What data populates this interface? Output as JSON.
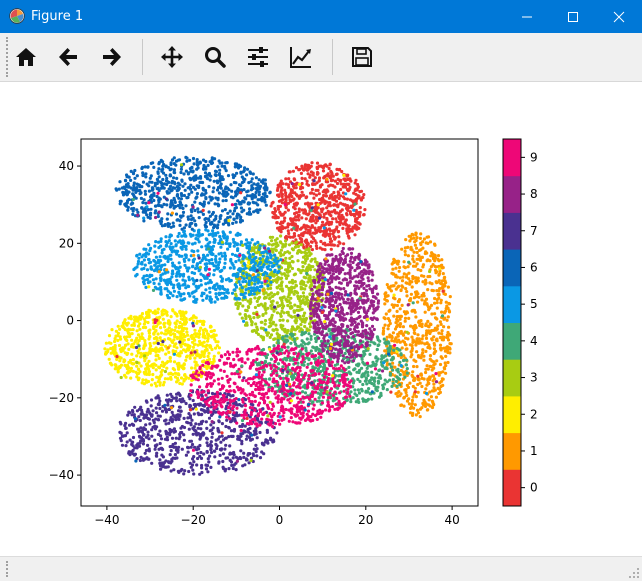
{
  "window": {
    "title": "Figure 1"
  },
  "toolbar": {
    "buttons": [
      {
        "name": "home",
        "icon": "home-icon"
      },
      {
        "name": "back",
        "icon": "arrow-left-icon"
      },
      {
        "name": "forward",
        "icon": "arrow-right-icon"
      },
      {
        "name": "pan",
        "icon": "move-icon"
      },
      {
        "name": "zoom",
        "icon": "magnifier-icon"
      },
      {
        "name": "configure-subplots",
        "icon": "sliders-icon"
      },
      {
        "name": "edit-axis",
        "icon": "line-chart-icon"
      },
      {
        "name": "save",
        "icon": "floppy-disk-icon"
      }
    ]
  },
  "status": {
    "message": ""
  },
  "chart_data": {
    "type": "scatter",
    "title": "",
    "xlabel": "",
    "ylabel": "",
    "xlim": [
      -46,
      46
    ],
    "ylim": [
      -48,
      47
    ],
    "xticks": [
      -40,
      -20,
      0,
      20,
      40
    ],
    "yticks": [
      -40,
      -20,
      0,
      20,
      40
    ],
    "grid": false,
    "legend": "none",
    "colorbar": {
      "ticks": [
        0,
        1,
        2,
        3,
        4,
        5,
        6,
        7,
        8,
        9
      ],
      "range": [
        -0.5,
        9.5
      ],
      "colors": [
        "#ea3433",
        "#ff9900",
        "#ffee00",
        "#a8cc12",
        "#3fa877",
        "#0a98e4",
        "#0a65b7",
        "#4a3190",
        "#972288",
        "#ee0777"
      ]
    },
    "clusters": [
      {
        "label": 0,
        "center": [
          9,
          29.5
        ],
        "spread": [
          22,
          23
        ]
      },
      {
        "label": 1,
        "center": [
          32,
          -1
        ],
        "spread": [
          16,
          48
        ]
      },
      {
        "label": 2,
        "center": [
          -27,
          -7
        ],
        "spread": [
          27,
          20
        ]
      },
      {
        "label": 3,
        "center": [
          0,
          8
        ],
        "spread": [
          21,
          28
        ]
      },
      {
        "label": 4,
        "center": [
          12,
          -12
        ],
        "spread": [
          36,
          20
        ]
      },
      {
        "label": 5,
        "center": [
          -17,
          14
        ],
        "spread": [
          34,
          19
        ]
      },
      {
        "label": 6,
        "center": [
          -20,
          33
        ],
        "spread": [
          36,
          19
        ]
      },
      {
        "label": 7,
        "center": [
          -19,
          -29
        ],
        "spread": [
          37,
          22
        ]
      },
      {
        "label": 8,
        "center": [
          15,
          4
        ],
        "spread": [
          16,
          30
        ]
      },
      {
        "label": 9,
        "center": [
          -2,
          -17
        ],
        "spread": [
          38,
          21
        ]
      }
    ]
  }
}
